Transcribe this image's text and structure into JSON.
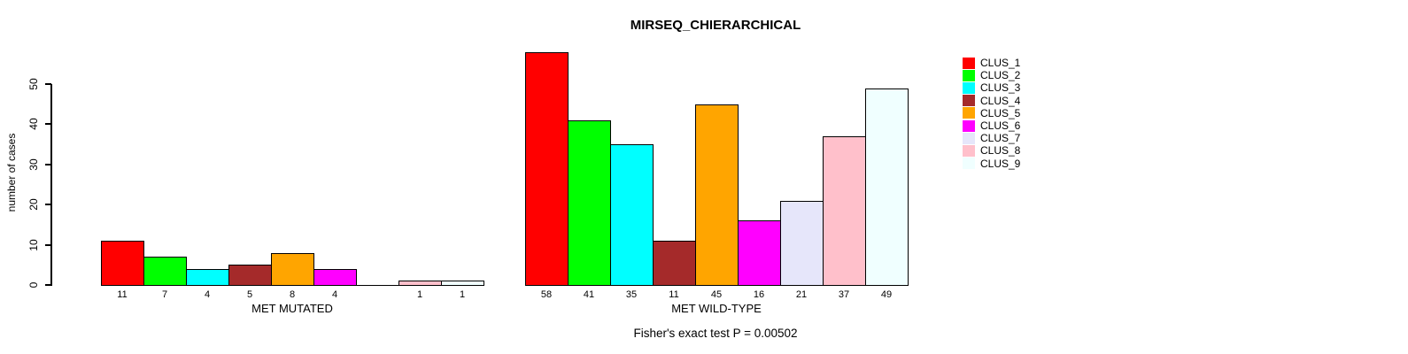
{
  "title": "MIRSEQ_CHIERARCHICAL",
  "footer_note": "Fisher's exact test P = 0.00502",
  "chart_data": {
    "type": "bar",
    "title": "MIRSEQ_CHIERARCHICAL",
    "xlabel": "",
    "ylabel": "number of cases",
    "ylim": [
      0,
      50
    ],
    "yticks": [
      0,
      10,
      20,
      30,
      40,
      50
    ],
    "grid": false,
    "legend_position": "right",
    "series_labels": [
      "CLUS_1",
      "CLUS_2",
      "CLUS_3",
      "CLUS_4",
      "CLUS_5",
      "CLUS_6",
      "CLUS_7",
      "CLUS_8",
      "CLUS_9"
    ],
    "series_colors": [
      "#FF0000",
      "#00FF00",
      "#00FFFF",
      "#A52A2A",
      "#FFA500",
      "#FF00FF",
      "#E6E6FA",
      "#FFC0CB",
      "#F0FFFF"
    ],
    "groups": [
      {
        "label": "MET MUTATED",
        "values": [
          11,
          7,
          4,
          5,
          8,
          4,
          0,
          1,
          1
        ],
        "bar_labels": [
          "11",
          "7",
          "4",
          "5",
          "8",
          "4",
          "",
          "1",
          "1"
        ]
      },
      {
        "label": "MET WILD-TYPE",
        "values": [
          58,
          41,
          35,
          11,
          45,
          16,
          21,
          37,
          49
        ],
        "bar_labels": [
          "58",
          "41",
          "35",
          "11",
          "45",
          "16",
          "21",
          "37",
          "49"
        ]
      }
    ],
    "annotation": "Fisher's exact test P = 0.00502"
  }
}
